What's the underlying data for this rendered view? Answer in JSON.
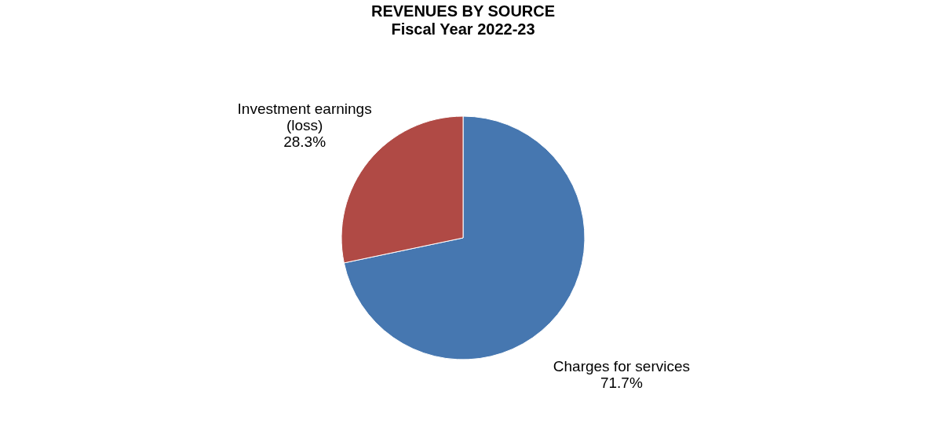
{
  "chart_data": {
    "type": "pie",
    "title": "REVENUES BY SOURCE",
    "subtitle": "Fiscal Year 2022-23",
    "categories": [
      "Charges for services",
      "Investment earnings (loss)"
    ],
    "values": [
      71.7,
      28.3
    ],
    "value_labels": [
      "71.7%",
      "28.3%"
    ],
    "colors": [
      "#4677b0",
      "#b04a45"
    ]
  }
}
